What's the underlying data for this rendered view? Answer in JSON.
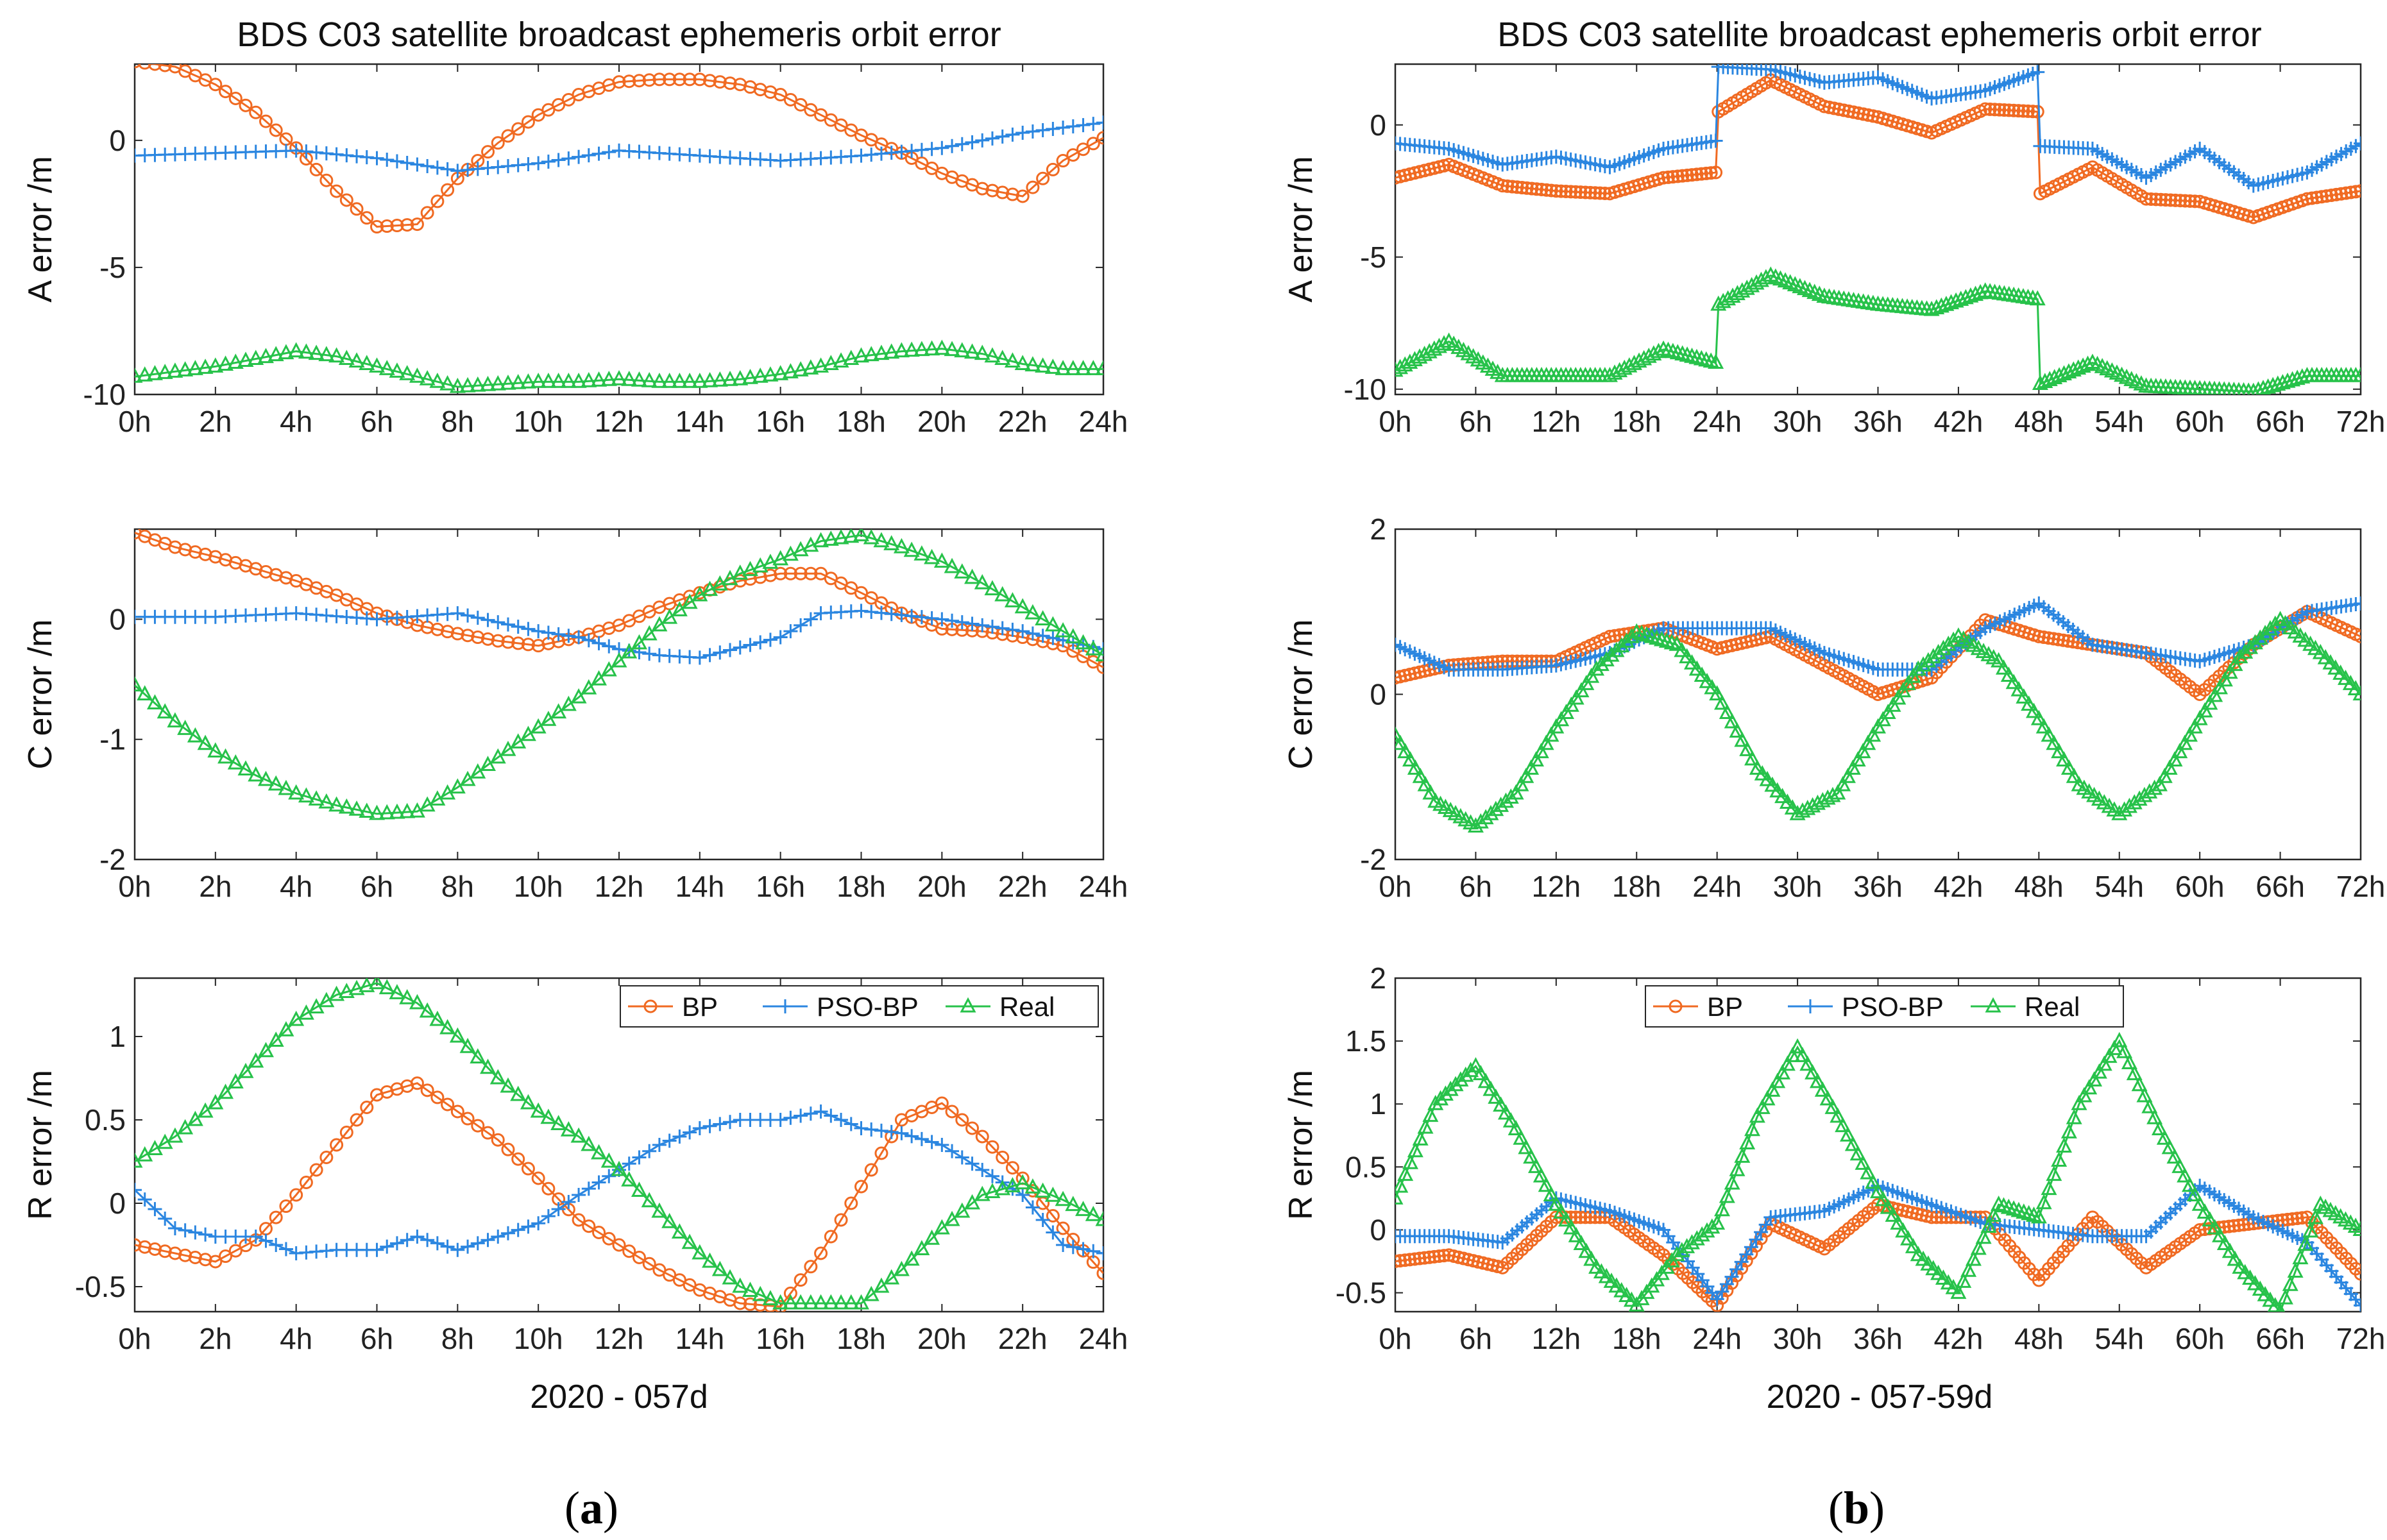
{
  "panels": {
    "a": {
      "title": "BDS C03 satellite broadcast ephemeris orbit error",
      "xlabel": "2020 - 057d",
      "xticks": [
        "0h",
        "2h",
        "4h",
        "6h",
        "8h",
        "10h",
        "12h",
        "14h",
        "16h",
        "18h",
        "20h",
        "22h",
        "24h"
      ],
      "label": "a"
    },
    "b": {
      "title": "BDS C03 satellite broadcast ephemeris orbit error",
      "xlabel": "2020 - 057-59d",
      "xticks": [
        "0h",
        "6h",
        "12h",
        "18h",
        "24h",
        "30h",
        "36h",
        "42h",
        "48h",
        "54h",
        "60h",
        "66h",
        "72h"
      ],
      "label": "b"
    }
  },
  "legend": [
    "BP",
    "PSO-BP",
    "Real"
  ],
  "colors": {
    "BP": "#f06a22",
    "PSO-BP": "#2b86e0",
    "Real": "#27c24a",
    "axis": "#262626"
  },
  "chart_data": [
    {
      "type": "line",
      "panel": "a",
      "row": "A",
      "ylabel": "A error /m",
      "xlim": [
        0,
        24
      ],
      "ylim": [
        -10,
        3
      ],
      "yticks": [
        -10,
        -5,
        0
      ],
      "series": [
        {
          "name": "BP",
          "x": [
            0,
            1,
            2,
            3,
            4,
            5,
            6,
            7,
            8,
            9,
            10,
            11,
            12,
            13,
            14,
            15,
            16,
            17,
            18,
            19,
            20,
            21,
            22,
            23,
            24
          ],
          "y": [
            3.1,
            2.9,
            2.2,
            1.1,
            -0.3,
            -2.0,
            -3.4,
            -3.3,
            -1.5,
            -0.1,
            1.0,
            1.8,
            2.3,
            2.4,
            2.4,
            2.2,
            1.8,
            1.0,
            0.2,
            -0.5,
            -1.3,
            -1.9,
            -2.2,
            -0.8,
            0.1
          ]
        },
        {
          "name": "PSO-BP",
          "x": [
            0,
            2,
            4,
            6,
            8,
            10,
            12,
            14,
            16,
            18,
            20,
            22,
            24
          ],
          "y": [
            -0.6,
            -0.5,
            -0.4,
            -0.7,
            -1.2,
            -0.9,
            -0.4,
            -0.6,
            -0.8,
            -0.6,
            -0.3,
            0.3,
            0.7
          ]
        },
        {
          "name": "Real",
          "x": [
            0,
            1,
            2,
            3,
            4,
            5,
            6,
            7,
            8,
            9,
            10,
            11,
            12,
            13,
            14,
            15,
            16,
            17,
            18,
            19,
            20,
            21,
            22,
            23,
            24
          ],
          "y": [
            -9.3,
            -9.1,
            -8.9,
            -8.6,
            -8.3,
            -8.5,
            -8.9,
            -9.3,
            -9.7,
            -9.6,
            -9.5,
            -9.5,
            -9.4,
            -9.5,
            -9.5,
            -9.4,
            -9.2,
            -8.9,
            -8.5,
            -8.3,
            -8.2,
            -8.4,
            -8.8,
            -9.0,
            -9.0
          ]
        }
      ]
    },
    {
      "type": "line",
      "panel": "a",
      "row": "C",
      "ylabel": "C error /m",
      "xlim": [
        0,
        24
      ],
      "ylim": [
        -2,
        0.75
      ],
      "yticks": [
        -2,
        -1,
        0
      ],
      "series": [
        {
          "name": "BP",
          "x": [
            0,
            1,
            2,
            3,
            4,
            5,
            6,
            7,
            8,
            9,
            10,
            11,
            12,
            13,
            14,
            15,
            16,
            17,
            18,
            19,
            20,
            21,
            22,
            23,
            24
          ],
          "y": [
            0.72,
            0.6,
            0.52,
            0.42,
            0.32,
            0.2,
            0.05,
            -0.05,
            -0.12,
            -0.18,
            -0.22,
            -0.15,
            -0.05,
            0.1,
            0.22,
            0.32,
            0.38,
            0.38,
            0.22,
            0.05,
            -0.08,
            -0.1,
            -0.15,
            -0.22,
            -0.4
          ]
        },
        {
          "name": "PSO-BP",
          "x": [
            0,
            2,
            4,
            6,
            8,
            10,
            11,
            12,
            13,
            14,
            16,
            17,
            18,
            20,
            22,
            24
          ],
          "y": [
            0.02,
            0.02,
            0.05,
            0.0,
            0.05,
            -0.1,
            -0.15,
            -0.25,
            -0.3,
            -0.32,
            -0.15,
            0.05,
            0.07,
            0.0,
            -0.1,
            -0.25
          ]
        },
        {
          "name": "Real",
          "x": [
            0,
            1,
            2,
            3,
            4,
            5,
            6,
            7,
            8,
            9,
            10,
            11,
            12,
            13,
            14,
            15,
            16,
            17,
            18,
            19,
            20,
            21,
            22,
            23,
            24
          ],
          "y": [
            -0.55,
            -0.85,
            -1.1,
            -1.3,
            -1.45,
            -1.55,
            -1.62,
            -1.6,
            -1.4,
            -1.15,
            -0.9,
            -0.65,
            -0.35,
            -0.05,
            0.2,
            0.38,
            0.5,
            0.65,
            0.7,
            0.6,
            0.48,
            0.3,
            0.1,
            -0.1,
            -0.3
          ]
        }
      ]
    },
    {
      "type": "line",
      "panel": "a",
      "row": "R",
      "ylabel": "R error /m",
      "xlim": [
        0,
        24
      ],
      "ylim": [
        -0.65,
        1.35
      ],
      "yticks": [
        -0.5,
        0,
        0.5,
        1
      ],
      "legend": "top-right",
      "series": [
        {
          "name": "BP",
          "x": [
            0,
            1,
            2,
            3,
            4,
            5,
            6,
            7,
            8,
            9,
            10,
            11,
            12,
            13,
            14,
            15,
            16,
            17,
            18,
            19,
            20,
            21,
            22,
            23,
            24
          ],
          "y": [
            -0.25,
            -0.3,
            -0.35,
            -0.22,
            0.05,
            0.35,
            0.65,
            0.72,
            0.55,
            0.38,
            0.15,
            -0.1,
            -0.25,
            -0.4,
            -0.52,
            -0.6,
            -0.62,
            -0.3,
            0.1,
            0.5,
            0.6,
            0.4,
            0.15,
            -0.15,
            -0.42
          ]
        },
        {
          "name": "PSO-BP",
          "x": [
            0,
            1,
            2,
            3,
            4,
            5,
            6,
            7,
            8,
            9,
            10,
            11,
            12,
            13,
            14,
            15,
            16,
            17,
            18,
            19,
            20,
            21,
            22,
            23,
            24
          ],
          "y": [
            0.08,
            -0.15,
            -0.2,
            -0.2,
            -0.3,
            -0.28,
            -0.28,
            -0.2,
            -0.28,
            -0.2,
            -0.12,
            0.05,
            0.2,
            0.35,
            0.45,
            0.5,
            0.5,
            0.55,
            0.45,
            0.42,
            0.35,
            0.2,
            0.05,
            -0.25,
            -0.3
          ]
        },
        {
          "name": "Real",
          "x": [
            0,
            1,
            2,
            3,
            4,
            5,
            6,
            7,
            8,
            9,
            10,
            11,
            12,
            13,
            14,
            15,
            16,
            17,
            18,
            19,
            20,
            21,
            22,
            23,
            24
          ],
          "y": [
            0.25,
            0.4,
            0.6,
            0.85,
            1.1,
            1.25,
            1.32,
            1.2,
            1.0,
            0.75,
            0.55,
            0.4,
            0.2,
            -0.05,
            -0.3,
            -0.5,
            -0.6,
            -0.6,
            -0.6,
            -0.4,
            -0.15,
            0.05,
            0.12,
            0.02,
            -0.1
          ]
        }
      ]
    },
    {
      "type": "line",
      "panel": "b",
      "row": "A",
      "ylabel": "A error /m",
      "xlim": [
        0,
        72
      ],
      "ylim": [
        -10.2,
        2.3
      ],
      "yticks": [
        -10,
        -5,
        0
      ],
      "series": [
        {
          "name": "BP",
          "x": [
            0,
            4,
            8,
            12,
            16,
            20,
            23.9,
            24.1,
            28,
            32,
            36,
            40,
            44,
            47.9,
            48.1,
            52,
            56,
            60,
            64,
            68,
            72
          ],
          "y": [
            -2.0,
            -1.5,
            -2.3,
            -2.5,
            -2.6,
            -2.0,
            -1.8,
            0.5,
            1.7,
            0.7,
            0.3,
            -0.3,
            0.6,
            0.5,
            -2.6,
            -1.6,
            -2.8,
            -2.9,
            -3.5,
            -2.8,
            -2.5
          ]
        },
        {
          "name": "PSO-BP",
          "x": [
            0,
            4,
            8,
            12,
            16,
            20,
            23.9,
            24.1,
            28,
            32,
            36,
            40,
            44,
            47.9,
            48.1,
            52,
            56,
            60,
            64,
            68,
            72
          ],
          "y": [
            -0.7,
            -0.9,
            -1.5,
            -1.2,
            -1.6,
            -0.9,
            -0.6,
            2.2,
            2.1,
            1.6,
            1.8,
            1.0,
            1.3,
            2.0,
            -0.8,
            -0.9,
            -2.0,
            -0.9,
            -2.3,
            -1.8,
            -0.7
          ]
        },
        {
          "name": "Real",
          "x": [
            0,
            4,
            8,
            12,
            16,
            20,
            23.9,
            24.1,
            28,
            32,
            36,
            40,
            44,
            47.9,
            48.1,
            52,
            56,
            60,
            64,
            68,
            72
          ],
          "y": [
            -9.3,
            -8.2,
            -9.5,
            -9.5,
            -9.5,
            -8.5,
            -9.0,
            -6.8,
            -5.7,
            -6.5,
            -6.8,
            -7.0,
            -6.3,
            -6.6,
            -9.8,
            -9.0,
            -9.9,
            -10.0,
            -10.1,
            -9.5,
            -9.5
          ]
        }
      ]
    },
    {
      "type": "line",
      "panel": "b",
      "row": "C",
      "ylabel": "C error /m",
      "xlim": [
        0,
        72
      ],
      "ylim": [
        -2,
        2
      ],
      "yticks": [
        -2,
        0,
        2
      ],
      "series": [
        {
          "name": "BP",
          "x": [
            0,
            4,
            8,
            12,
            16,
            20,
            24,
            28,
            32,
            36,
            40,
            44,
            48,
            52,
            56,
            60,
            64,
            68,
            72
          ],
          "y": [
            0.2,
            0.35,
            0.4,
            0.4,
            0.7,
            0.8,
            0.55,
            0.7,
            0.35,
            0.0,
            0.2,
            0.9,
            0.7,
            0.6,
            0.5,
            0.0,
            0.6,
            1.0,
            0.7
          ]
        },
        {
          "name": "PSO-BP",
          "x": [
            0,
            4,
            8,
            12,
            16,
            20,
            24,
            28,
            32,
            36,
            40,
            44,
            48,
            52,
            56,
            60,
            64,
            68,
            72
          ],
          "y": [
            0.6,
            0.3,
            0.3,
            0.35,
            0.5,
            0.8,
            0.8,
            0.8,
            0.5,
            0.3,
            0.3,
            0.8,
            1.1,
            0.6,
            0.5,
            0.4,
            0.6,
            1.0,
            1.1
          ]
        },
        {
          "name": "Real",
          "x": [
            0,
            3,
            6,
            9,
            12,
            15,
            18,
            21,
            24,
            27,
            30,
            33,
            36,
            39,
            42,
            45,
            48,
            51,
            54,
            57,
            60,
            63,
            66,
            69,
            72
          ],
          "y": [
            -0.5,
            -1.3,
            -1.6,
            -1.2,
            -0.4,
            0.3,
            0.75,
            0.6,
            0.0,
            -0.9,
            -1.45,
            -1.2,
            -0.4,
            0.3,
            0.7,
            0.4,
            -0.3,
            -1.1,
            -1.45,
            -1.1,
            -0.3,
            0.45,
            0.9,
            0.5,
            0.0
          ]
        }
      ]
    },
    {
      "type": "line",
      "panel": "b",
      "row": "R",
      "ylabel": "R error /m",
      "xlim": [
        0,
        72
      ],
      "ylim": [
        -0.65,
        2.0
      ],
      "yticks": [
        -0.5,
        0,
        0.5,
        1,
        1.5,
        2
      ],
      "legend": "top-left",
      "series": [
        {
          "name": "BP",
          "x": [
            0,
            4,
            8,
            12,
            16,
            20,
            24,
            28,
            32,
            36,
            40,
            44,
            48,
            52,
            56,
            60,
            64,
            68,
            72
          ],
          "y": [
            -0.25,
            -0.2,
            -0.3,
            0.1,
            0.1,
            -0.2,
            -0.6,
            0.05,
            -0.15,
            0.2,
            0.1,
            0.1,
            -0.4,
            0.1,
            -0.3,
            0.0,
            0.05,
            0.1,
            -0.35
          ]
        },
        {
          "name": "PSO-BP",
          "x": [
            0,
            4,
            8,
            12,
            16,
            20,
            24,
            28,
            32,
            36,
            40,
            44,
            48,
            52,
            56,
            60,
            64,
            68,
            72
          ],
          "y": [
            -0.05,
            -0.05,
            -0.1,
            0.25,
            0.15,
            0.0,
            -0.55,
            0.1,
            0.15,
            0.35,
            0.2,
            0.05,
            0.0,
            -0.05,
            -0.05,
            0.35,
            0.1,
            -0.1,
            -0.6
          ]
        },
        {
          "name": "Real",
          "x": [
            0,
            3,
            6,
            9,
            12,
            15,
            18,
            21,
            24,
            27,
            30,
            33,
            36,
            39,
            42,
            45,
            48,
            51,
            54,
            57,
            60,
            63,
            66,
            69,
            72
          ],
          "y": [
            0.25,
            1.0,
            1.3,
            0.8,
            0.2,
            -0.3,
            -0.6,
            -0.2,
            0.05,
            0.9,
            1.45,
            0.9,
            0.3,
            -0.2,
            -0.5,
            0.2,
            0.1,
            1.0,
            1.5,
            0.8,
            0.2,
            -0.3,
            -0.65,
            0.2,
            0.0
          ]
        }
      ]
    }
  ]
}
